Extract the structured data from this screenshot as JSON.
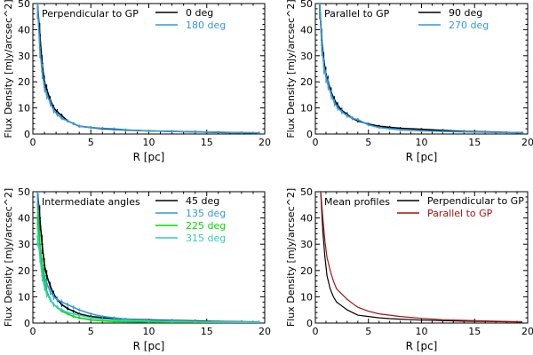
{
  "figure": {
    "layout": "2x2 grid of flux density profile panels"
  },
  "chart_data": [
    {
      "type": "line",
      "panel_label": "Perpendicular to GP",
      "xlabel": "R [pc]",
      "ylabel": "Flux Density [mJy/arcsec^2]",
      "xlim": [
        0,
        20
      ],
      "ylim": [
        0,
        50
      ],
      "xticks": [
        0,
        5,
        10,
        15,
        20
      ],
      "yticks": [
        0,
        10,
        20,
        30,
        40,
        50
      ],
      "legend_position": "top-right",
      "series": [
        {
          "name": "0 deg",
          "color": "#000000",
          "error_bars": true,
          "x": [
            0.4,
            0.6,
            0.8,
            1.0,
            1.2,
            1.5,
            1.8,
            2.1,
            2.5,
            3.0,
            3.5,
            4.0,
            5.0,
            6.0,
            7.0,
            8.0,
            10.0,
            12.0,
            14.0,
            16.0,
            18.0,
            19.5
          ],
          "y": [
            50,
            38,
            27,
            20,
            17,
            13,
            10,
            8.5,
            7,
            5,
            4,
            3,
            2.5,
            2,
            1.8,
            1.5,
            1.2,
            1.0,
            0.8,
            0.6,
            0.5,
            0.4
          ]
        },
        {
          "name": "180 deg",
          "color": "#3399dd",
          "error_bars": true,
          "x": [
            0.4,
            0.6,
            0.8,
            1.0,
            1.2,
            1.5,
            1.8,
            2.1,
            2.5,
            3.0,
            3.5,
            4.0,
            5.0,
            6.0,
            7.0,
            8.0,
            10.0,
            12.0,
            14.0,
            16.0,
            18.0,
            19.5
          ],
          "y": [
            50,
            33,
            24,
            18,
            15,
            12,
            9,
            7.5,
            6,
            5,
            4,
            3,
            2.5,
            2.2,
            2.0,
            1.6,
            1.2,
            1.0,
            0.8,
            0.7,
            0.5,
            0.4
          ]
        }
      ]
    },
    {
      "type": "line",
      "panel_label": "Parallel to GP",
      "xlabel": "R [pc]",
      "ylabel": "Flux Density [mJy/arcsec^2]",
      "xlim": [
        0,
        20
      ],
      "ylim": [
        0,
        50
      ],
      "xticks": [
        0,
        5,
        10,
        15,
        20
      ],
      "yticks": [
        0,
        10,
        20,
        30,
        40,
        50
      ],
      "legend_position": "top-right",
      "series": [
        {
          "name": "90 deg",
          "color": "#000000",
          "error_bars": true,
          "x": [
            0.4,
            0.6,
            0.8,
            1.0,
            1.2,
            1.5,
            1.8,
            2.1,
            2.5,
            3.0,
            3.5,
            4.0,
            5.0,
            6.0,
            7.0,
            8.0,
            10.0,
            12.0,
            14.0,
            16.0,
            18.0,
            19.5
          ],
          "y": [
            50,
            36,
            28,
            23,
            20,
            16,
            13,
            11,
            9,
            7.5,
            6,
            5,
            3.8,
            3,
            2.6,
            2.2,
            1.8,
            1.4,
            1.0,
            0.8,
            0.6,
            0.5
          ]
        },
        {
          "name": "270 deg",
          "color": "#3399dd",
          "error_bars": true,
          "x": [
            0.4,
            0.6,
            0.8,
            1.0,
            1.2,
            1.5,
            1.8,
            2.1,
            2.5,
            3.0,
            3.5,
            4.0,
            5.0,
            6.0,
            7.0,
            8.0,
            10.0,
            12.0,
            14.0,
            16.0,
            18.0,
            19.5
          ],
          "y": [
            50,
            34,
            26,
            22,
            19,
            15,
            12,
            10,
            8.5,
            7,
            6,
            5.5,
            3.5,
            2.5,
            2.0,
            1.6,
            1.2,
            1.0,
            0.8,
            0.7,
            0.6,
            0.5
          ]
        }
      ]
    },
    {
      "type": "line",
      "panel_label": "Intermediate angles",
      "xlabel": "R [pc]",
      "ylabel": "Flux Density [mJy/arcsec^2]",
      "xlim": [
        0,
        20
      ],
      "ylim": [
        0,
        50
      ],
      "xticks": [
        0,
        5,
        10,
        15,
        20
      ],
      "yticks": [
        0,
        10,
        20,
        30,
        40,
        50
      ],
      "legend_position": "top-right",
      "series": [
        {
          "name": "45 deg",
          "color": "#000000",
          "error_bars": true,
          "x": [
            0.4,
            0.6,
            0.8,
            1.0,
            1.2,
            1.5,
            1.8,
            2.1,
            2.5,
            3.0,
            3.5,
            4.0,
            5.0,
            6.0,
            7.0,
            8.0,
            10.0,
            12.0,
            14.0,
            16.0,
            18.0,
            19.5
          ],
          "y": [
            50,
            40,
            30,
            22,
            18,
            14,
            11,
            9,
            7,
            5.5,
            4.5,
            3.5,
            2.5,
            2,
            1.8,
            1.5,
            1.2,
            1.0,
            0.8,
            0.6,
            0.5,
            0.4
          ]
        },
        {
          "name": "135 deg",
          "color": "#3399dd",
          "error_bars": true,
          "x": [
            0.4,
            0.6,
            0.8,
            1.0,
            1.2,
            1.5,
            1.8,
            2.1,
            2.5,
            3.0,
            3.5,
            4.0,
            5.0,
            6.0,
            7.0,
            8.0,
            10.0,
            12.0,
            14.0,
            16.0,
            18.0,
            19.5
          ],
          "y": [
            50,
            30,
            22,
            18,
            15,
            12,
            10,
            9,
            8,
            7,
            6,
            5,
            3.5,
            2.5,
            2.0,
            1.5,
            1.0,
            0.8,
            0.6,
            0.5,
            0.4,
            0.3
          ]
        },
        {
          "name": "225 deg",
          "color": "#00dd00",
          "error_bars": true,
          "x": [
            0.4,
            0.6,
            0.8,
            1.0,
            1.2,
            1.5,
            1.8,
            2.1,
            2.5,
            3.0,
            3.5,
            4.0,
            5.0,
            6.0,
            7.0,
            8.0,
            10.0,
            12.0,
            14.0,
            16.0,
            18.0,
            19.5
          ],
          "y": [
            40,
            30,
            22,
            16,
            12,
            9,
            7,
            6,
            4.5,
            3.5,
            2.5,
            2,
            1.2,
            0.8,
            0.6,
            0.5,
            0.4,
            0.3,
            0.3,
            0.2,
            0.2,
            0.2
          ]
        },
        {
          "name": "315 deg",
          "color": "#33ccbb",
          "error_bars": true,
          "x": [
            0.4,
            0.6,
            0.8,
            1.0,
            1.2,
            1.5,
            1.8,
            2.1,
            2.5,
            3.0,
            3.5,
            4.0,
            5.0,
            6.0,
            7.0,
            8.0,
            10.0,
            12.0,
            14.0,
            16.0,
            18.0,
            19.5
          ],
          "y": [
            33,
            26,
            18,
            14,
            11,
            9,
            7,
            6,
            5,
            4,
            3.5,
            3,
            2,
            1.5,
            1.2,
            1.0,
            0.8,
            0.6,
            0.5,
            0.4,
            0.3,
            0.3
          ]
        }
      ]
    },
    {
      "type": "line",
      "panel_label": "Mean profiles",
      "xlabel": "R [pc]",
      "ylabel": "Flux Density [mJy/arcsec^2]",
      "xlim": [
        0,
        20
      ],
      "ylim": [
        0,
        50
      ],
      "xticks": [
        0,
        5,
        10,
        15,
        20
      ],
      "yticks": [
        0,
        10,
        20,
        30,
        40,
        50
      ],
      "legend_position": "top-right",
      "series": [
        {
          "name": "Perpendicular to GP",
          "color": "#000000",
          "error_bars": false,
          "x": [
            0.5,
            0.7,
            0.9,
            1.1,
            1.4,
            1.7,
            2.0,
            2.5,
            3.0,
            3.5,
            4.0,
            5.0,
            6.0,
            7.0,
            8.0,
            10.0,
            12.0,
            14.0,
            16.0,
            18.0,
            19.5
          ],
          "y": [
            50,
            35,
            25,
            18,
            13,
            10,
            8,
            6.5,
            5,
            4,
            3,
            2.5,
            2,
            1.7,
            1.5,
            1.1,
            0.9,
            0.7,
            0.6,
            0.5,
            0.4
          ]
        },
        {
          "name": "Parallel to GP",
          "color": "#aa1111",
          "error_bars": false,
          "x": [
            0.5,
            0.7,
            0.9,
            1.1,
            1.4,
            1.7,
            2.0,
            2.5,
            3.0,
            3.5,
            4.0,
            5.0,
            6.0,
            7.0,
            8.0,
            10.0,
            12.0,
            14.0,
            16.0,
            18.0,
            19.5
          ],
          "y": [
            50,
            40,
            31,
            25,
            20,
            16,
            13,
            11,
            9,
            7.5,
            6,
            4.5,
            3.5,
            3,
            2.5,
            1.8,
            1.3,
            1.0,
            0.8,
            0.6,
            0.5
          ]
        }
      ]
    }
  ]
}
